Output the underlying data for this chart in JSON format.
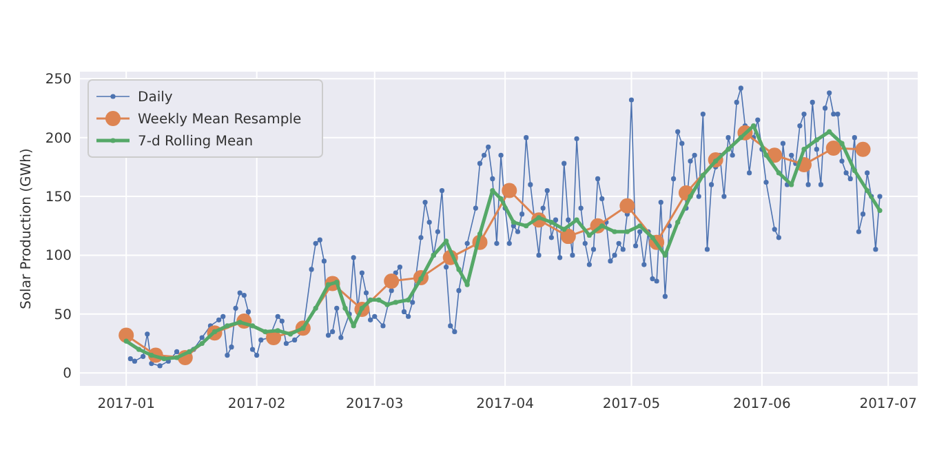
{
  "chart_data": {
    "type": "line",
    "ylabel": "Solar Production (GWh)",
    "ylim": [
      -11,
      256
    ],
    "yticks": [
      0,
      50,
      100,
      150,
      200,
      250
    ],
    "xlim": [
      "2016-12-21",
      "2017-07-08"
    ],
    "xticks": [
      {
        "value": "2017-01",
        "label": "2017-01"
      },
      {
        "value": "2017-02",
        "label": "2017-02"
      },
      {
        "value": "2017-03",
        "label": "2017-03"
      },
      {
        "value": "2017-04",
        "label": "2017-04"
      },
      {
        "value": "2017-05",
        "label": "2017-05"
      },
      {
        "value": "2017-06",
        "label": "2017-06"
      },
      {
        "value": "2017-07",
        "label": "2017-07"
      }
    ],
    "grid": true,
    "legend": "top left",
    "marker": "circle",
    "line_style": "solid",
    "series": [
      {
        "name": "Daily",
        "color": "#4c72b0",
        "x": [
          "2017-01-02",
          "2017-01-03",
          "2017-01-05",
          "2017-01-06",
          "2017-01-07",
          "2017-01-09",
          "2017-01-11",
          "2017-01-13",
          "2017-01-15",
          "2017-01-17",
          "2017-01-19",
          "2017-01-21",
          "2017-01-23",
          "2017-01-24",
          "2017-01-25",
          "2017-01-26",
          "2017-01-27",
          "2017-01-28",
          "2017-01-29",
          "2017-01-30",
          "2017-01-31",
          "2017-02-01",
          "2017-02-02",
          "2017-02-04",
          "2017-02-06",
          "2017-02-07",
          "2017-02-08",
          "2017-02-10",
          "2017-02-12",
          "2017-02-14",
          "2017-02-15",
          "2017-02-16",
          "2017-02-17",
          "2017-02-18",
          "2017-02-19",
          "2017-02-20",
          "2017-02-21",
          "2017-02-23",
          "2017-02-24",
          "2017-02-25",
          "2017-02-26",
          "2017-02-27",
          "2017-02-28",
          "2017-03-01",
          "2017-03-03",
          "2017-03-05",
          "2017-03-06",
          "2017-03-07",
          "2017-03-08",
          "2017-03-09",
          "2017-03-10",
          "2017-03-12",
          "2017-03-13",
          "2017-03-14",
          "2017-03-15",
          "2017-03-16",
          "2017-03-17",
          "2017-03-18",
          "2017-03-19",
          "2017-03-20",
          "2017-03-21",
          "2017-03-23",
          "2017-03-25",
          "2017-03-26",
          "2017-03-27",
          "2017-03-28",
          "2017-03-29",
          "2017-03-30",
          "2017-03-31",
          "2017-04-01",
          "2017-04-02",
          "2017-04-03",
          "2017-04-04",
          "2017-04-05",
          "2017-04-06",
          "2017-04-07",
          "2017-04-08",
          "2017-04-09",
          "2017-04-10",
          "2017-04-11",
          "2017-04-12",
          "2017-04-13",
          "2017-04-14",
          "2017-04-15",
          "2017-04-16",
          "2017-04-17",
          "2017-04-18",
          "2017-04-19",
          "2017-04-20",
          "2017-04-21",
          "2017-04-22",
          "2017-04-23",
          "2017-04-24",
          "2017-04-25",
          "2017-04-26",
          "2017-04-27",
          "2017-04-28",
          "2017-04-29",
          "2017-04-30",
          "2017-05-01",
          "2017-05-02",
          "2017-05-03",
          "2017-05-04",
          "2017-05-05",
          "2017-05-06",
          "2017-05-07",
          "2017-05-08",
          "2017-05-09",
          "2017-05-10",
          "2017-05-11",
          "2017-05-12",
          "2017-05-13",
          "2017-05-14",
          "2017-05-15",
          "2017-05-16",
          "2017-05-17",
          "2017-05-18",
          "2017-05-19",
          "2017-05-20",
          "2017-05-21",
          "2017-05-22",
          "2017-05-23",
          "2017-05-24",
          "2017-05-25",
          "2017-05-26",
          "2017-05-27",
          "2017-05-28",
          "2017-05-29",
          "2017-05-30",
          "2017-05-31",
          "2017-06-01",
          "2017-06-02",
          "2017-06-04",
          "2017-06-05",
          "2017-06-06",
          "2017-06-07",
          "2017-06-08",
          "2017-06-09",
          "2017-06-10",
          "2017-06-11",
          "2017-06-12",
          "2017-06-13",
          "2017-06-14",
          "2017-06-15",
          "2017-06-16",
          "2017-06-17",
          "2017-06-18",
          "2017-06-19",
          "2017-06-20",
          "2017-06-21",
          "2017-06-22",
          "2017-06-23",
          "2017-06-24",
          "2017-06-25",
          "2017-06-26",
          "2017-06-27",
          "2017-06-28",
          "2017-06-29"
        ],
        "values": [
          12,
          10,
          14,
          33,
          8,
          6,
          10,
          18,
          12,
          20,
          30,
          40,
          45,
          48,
          15,
          22,
          55,
          68,
          66,
          52,
          20,
          15,
          28,
          30,
          48,
          44,
          25,
          28,
          35,
          88,
          110,
          113,
          95,
          32,
          35,
          55,
          30,
          50,
          98,
          55,
          85,
          68,
          45,
          48,
          40,
          70,
          85,
          90,
          52,
          48,
          60,
          115,
          145,
          128,
          100,
          120,
          155,
          90,
          40,
          35,
          70,
          110,
          140,
          178,
          185,
          192,
          165,
          110,
          185,
          140,
          110,
          125,
          120,
          135,
          200,
          160,
          130,
          100,
          140,
          155,
          115,
          130,
          98,
          178,
          130,
          100,
          199,
          140,
          110,
          92,
          105,
          165,
          148,
          128,
          95,
          100,
          110,
          105,
          135,
          232,
          108,
          120,
          92,
          120,
          80,
          78,
          145,
          65,
          125,
          165,
          205,
          195,
          140,
          180,
          185,
          150,
          220,
          105,
          160,
          175,
          185,
          150,
          200,
          185,
          230,
          242,
          210,
          170,
          200,
          215,
          190,
          162,
          122,
          115,
          195,
          160,
          185,
          178,
          210,
          220,
          160,
          230,
          190,
          160,
          225,
          238,
          220,
          220,
          180,
          170,
          165,
          200,
          120,
          135,
          170,
          150,
          105,
          150
        ]
      },
      {
        "name": "Weekly Mean Resample",
        "color": "#dd8452",
        "x": [
          "2017-01-01",
          "2017-01-08",
          "2017-01-15",
          "2017-01-22",
          "2017-01-29",
          "2017-02-05",
          "2017-02-12",
          "2017-02-19",
          "2017-02-26",
          "2017-03-05",
          "2017-03-12",
          "2017-03-19",
          "2017-03-26",
          "2017-04-02",
          "2017-04-09",
          "2017-04-16",
          "2017-04-23",
          "2017-04-30",
          "2017-05-07",
          "2017-05-14",
          "2017-05-21",
          "2017-05-28",
          "2017-06-04",
          "2017-06-11",
          "2017-06-18",
          "2017-06-25"
        ],
        "values": [
          32,
          15,
          13,
          34,
          44,
          30,
          38,
          76,
          54,
          78,
          81,
          98,
          111,
          155,
          130,
          116,
          125,
          142,
          111,
          153,
          181,
          204,
          185,
          177,
          191,
          190
        ]
      },
      {
        "name": "7-d Rolling Mean",
        "color": "#55a868",
        "x": [
          "2017-01-01",
          "2017-01-04",
          "2017-01-07",
          "2017-01-10",
          "2017-01-13",
          "2017-01-16",
          "2017-01-19",
          "2017-01-22",
          "2017-01-25",
          "2017-01-28",
          "2017-01-31",
          "2017-02-03",
          "2017-02-06",
          "2017-02-09",
          "2017-02-12",
          "2017-02-15",
          "2017-02-18",
          "2017-02-20",
          "2017-02-22",
          "2017-02-24",
          "2017-02-26",
          "2017-02-28",
          "2017-03-02",
          "2017-03-04",
          "2017-03-06",
          "2017-03-09",
          "2017-03-12",
          "2017-03-15",
          "2017-03-18",
          "2017-03-21",
          "2017-03-23",
          "2017-03-26",
          "2017-03-29",
          "2017-03-31",
          "2017-04-03",
          "2017-04-06",
          "2017-04-09",
          "2017-04-12",
          "2017-04-15",
          "2017-04-18",
          "2017-04-21",
          "2017-04-24",
          "2017-04-27",
          "2017-04-30",
          "2017-05-03",
          "2017-05-06",
          "2017-05-09",
          "2017-05-12",
          "2017-05-15",
          "2017-05-18",
          "2017-05-21",
          "2017-05-24",
          "2017-05-27",
          "2017-05-30",
          "2017-06-02",
          "2017-06-05",
          "2017-06-08",
          "2017-06-11",
          "2017-06-14",
          "2017-06-17",
          "2017-06-20",
          "2017-06-23",
          "2017-06-26",
          "2017-06-29"
        ],
        "values": [
          27,
          20,
          15,
          12,
          13,
          18,
          25,
          35,
          40,
          43,
          40,
          35,
          36,
          33,
          38,
          55,
          75,
          77,
          55,
          40,
          55,
          62,
          62,
          58,
          60,
          62,
          80,
          100,
          112,
          88,
          75,
          118,
          155,
          148,
          128,
          125,
          132,
          128,
          122,
          130,
          117,
          125,
          120,
          120,
          125,
          115,
          100,
          128,
          150,
          168,
          180,
          190,
          200,
          210,
          185,
          170,
          160,
          190,
          198,
          205,
          195,
          172,
          155,
          138
        ]
      }
    ]
  }
}
